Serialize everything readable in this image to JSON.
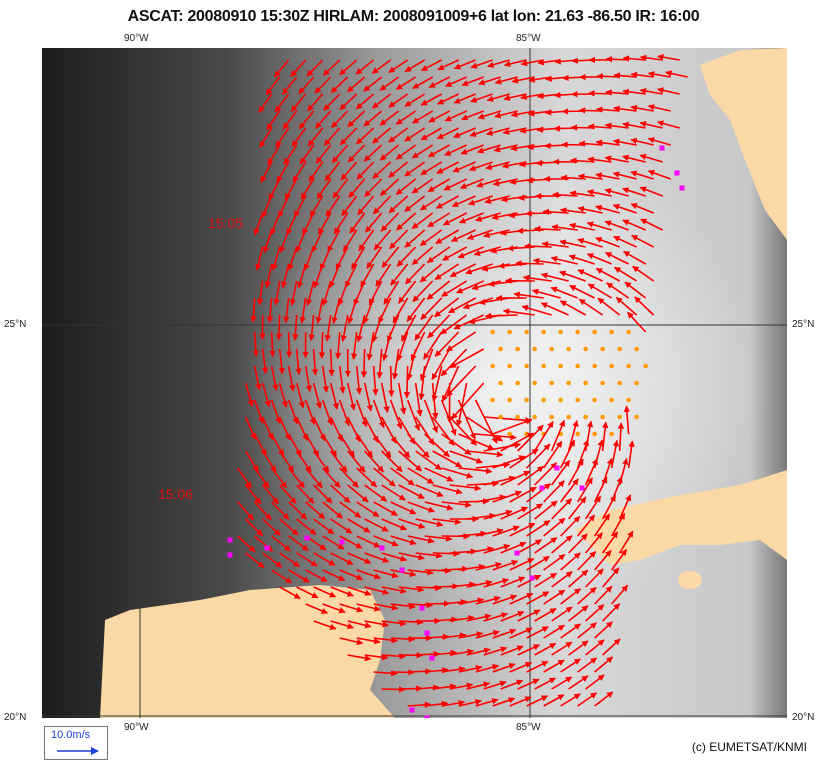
{
  "title": "ASCAT: 20080910 15:30Z HIRLAM: 2008091009+6 lat lon: 21.63 -86.50 IR: 16:00",
  "axes": {
    "lon_labels": [
      "90°W",
      "85°W"
    ],
    "lat_labels": [
      "25°N",
      "20°N"
    ]
  },
  "time_labels": [
    "15:05",
    "15:06"
  ],
  "legend": {
    "speed_label": "10.0m/s",
    "arrow_color": "#1a3fd8"
  },
  "copyright": "(c) EUMETSAT/KNMI",
  "colors": {
    "wind_vector": "#ff0000",
    "rain_flag": "#ff9900",
    "edge_flag": "#ff00ff",
    "land": "#fad9a6"
  }
}
